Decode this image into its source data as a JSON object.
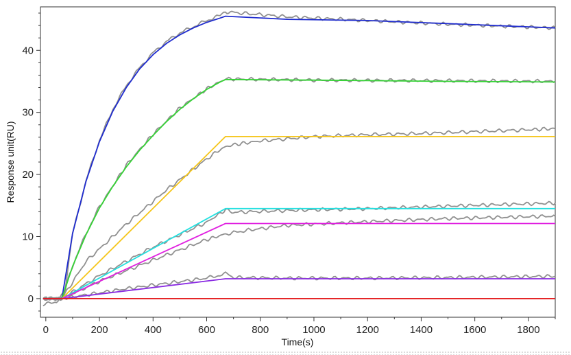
{
  "chart_data": {
    "type": "line",
    "xlabel": "Time(s)",
    "ylabel": "Response unit(RU)",
    "xlim": [
      -20,
      1900
    ],
    "ylim": [
      -3,
      47
    ],
    "xticks": [
      0,
      200,
      400,
      600,
      800,
      1000,
      1200,
      1400,
      1600,
      1800
    ],
    "yticks": [
      0,
      10,
      20,
      30,
      40
    ],
    "grid": false,
    "legend": "none",
    "series": [
      {
        "color": "#1f2ccf",
        "x": [
          -10,
          60,
          100,
          150,
          200,
          250,
          300,
          350,
          400,
          450,
          500,
          550,
          600,
          650,
          670,
          900,
          1200,
          1500,
          1900
        ],
        "y": [
          0,
          0,
          10.5,
          18.9,
          25.3,
          30.2,
          34.0,
          37.0,
          39.3,
          41.1,
          42.5,
          43.6,
          44.5,
          45.2,
          45.5,
          45.0,
          44.8,
          44.3,
          43.6
        ]
      },
      {
        "color": "#35d335",
        "x": [
          -10,
          60,
          100,
          150,
          200,
          250,
          300,
          350,
          400,
          450,
          500,
          550,
          600,
          650,
          670,
          1000,
          1500,
          1900
        ],
        "y": [
          0,
          0,
          5.2,
          10.3,
          14.6,
          18.1,
          21.2,
          23.9,
          26.3,
          28.5,
          30.5,
          32.2,
          33.7,
          34.9,
          35.3,
          35.2,
          35.0,
          34.9
        ]
      },
      {
        "color": "#f5c518",
        "x": [
          -10,
          60,
          670,
          1900
        ],
        "y": [
          0,
          0,
          26.1,
          26.1
        ]
      },
      {
        "color": "#24e0e0",
        "x": [
          -10,
          60,
          670,
          1900
        ],
        "y": [
          0,
          0,
          14.5,
          14.5
        ]
      },
      {
        "color": "#e020e0",
        "x": [
          -10,
          60,
          670,
          1900
        ],
        "y": [
          0,
          0,
          12.1,
          12.1
        ]
      },
      {
        "color": "#8a2be2",
        "x": [
          -10,
          60,
          670,
          1900
        ],
        "y": [
          0,
          0,
          3.2,
          3.2
        ]
      },
      {
        "color": "#e31a1c",
        "x": [
          -10,
          1900
        ],
        "y": [
          0,
          0
        ]
      }
    ],
    "measured_traces": {
      "color": "#909090",
      "traces": [
        {
          "x": [
            -10,
            40,
            70,
            100,
            150,
            200,
            250,
            300,
            350,
            400,
            450,
            500,
            550,
            600,
            650,
            670,
            700,
            900,
            1200,
            1500,
            1900
          ],
          "y": [
            -1,
            -0.5,
            1,
            10.5,
            19,
            25.5,
            30.5,
            34.3,
            37.2,
            39.6,
            41.4,
            42.8,
            43.8,
            44.8,
            45.6,
            46.2,
            46.1,
            45.4,
            44.8,
            44.2,
            43.6
          ]
        },
        {
          "x": [
            -10,
            60,
            100,
            150,
            200,
            300,
            400,
            500,
            600,
            670,
            1000,
            1500,
            1900
          ],
          "y": [
            0,
            0,
            5.3,
            10.5,
            14.8,
            21.5,
            26.5,
            30.7,
            33.8,
            35.4,
            35.2,
            35.1,
            35.0
          ]
        },
        {
          "x": [
            -10,
            60,
            150,
            300,
            450,
            600,
            660,
            700,
            800,
            1000,
            1200,
            1400,
            1600,
            1800,
            1900
          ],
          "y": [
            0,
            0,
            6,
            12,
            17.5,
            22.5,
            24.3,
            24.8,
            25.4,
            26.1,
            26.4,
            26.6,
            26.9,
            27.2,
            27.4
          ]
        },
        {
          "x": [
            -10,
            60,
            200,
            400,
            600,
            670,
            700,
            900,
            1200,
            1500,
            1900
          ],
          "y": [
            0,
            0,
            3.7,
            8.3,
            12.3,
            14.3,
            13.9,
            14.2,
            14.5,
            14.9,
            15.4
          ]
        },
        {
          "x": [
            -10,
            60,
            200,
            400,
            600,
            670,
            750,
            900,
            1200,
            1500,
            1900
          ],
          "y": [
            0,
            0,
            2.8,
            6.2,
            9.5,
            10.4,
            11.0,
            11.8,
            12.4,
            12.9,
            13.3
          ]
        },
        {
          "x": [
            -10,
            60,
            300,
            600,
            650,
            670,
            700,
            900,
            1200,
            1500,
            1900
          ],
          "y": [
            0,
            0,
            1.6,
            3.3,
            3.8,
            4.1,
            3.4,
            3.3,
            3.3,
            3.4,
            3.6
          ]
        }
      ]
    }
  }
}
